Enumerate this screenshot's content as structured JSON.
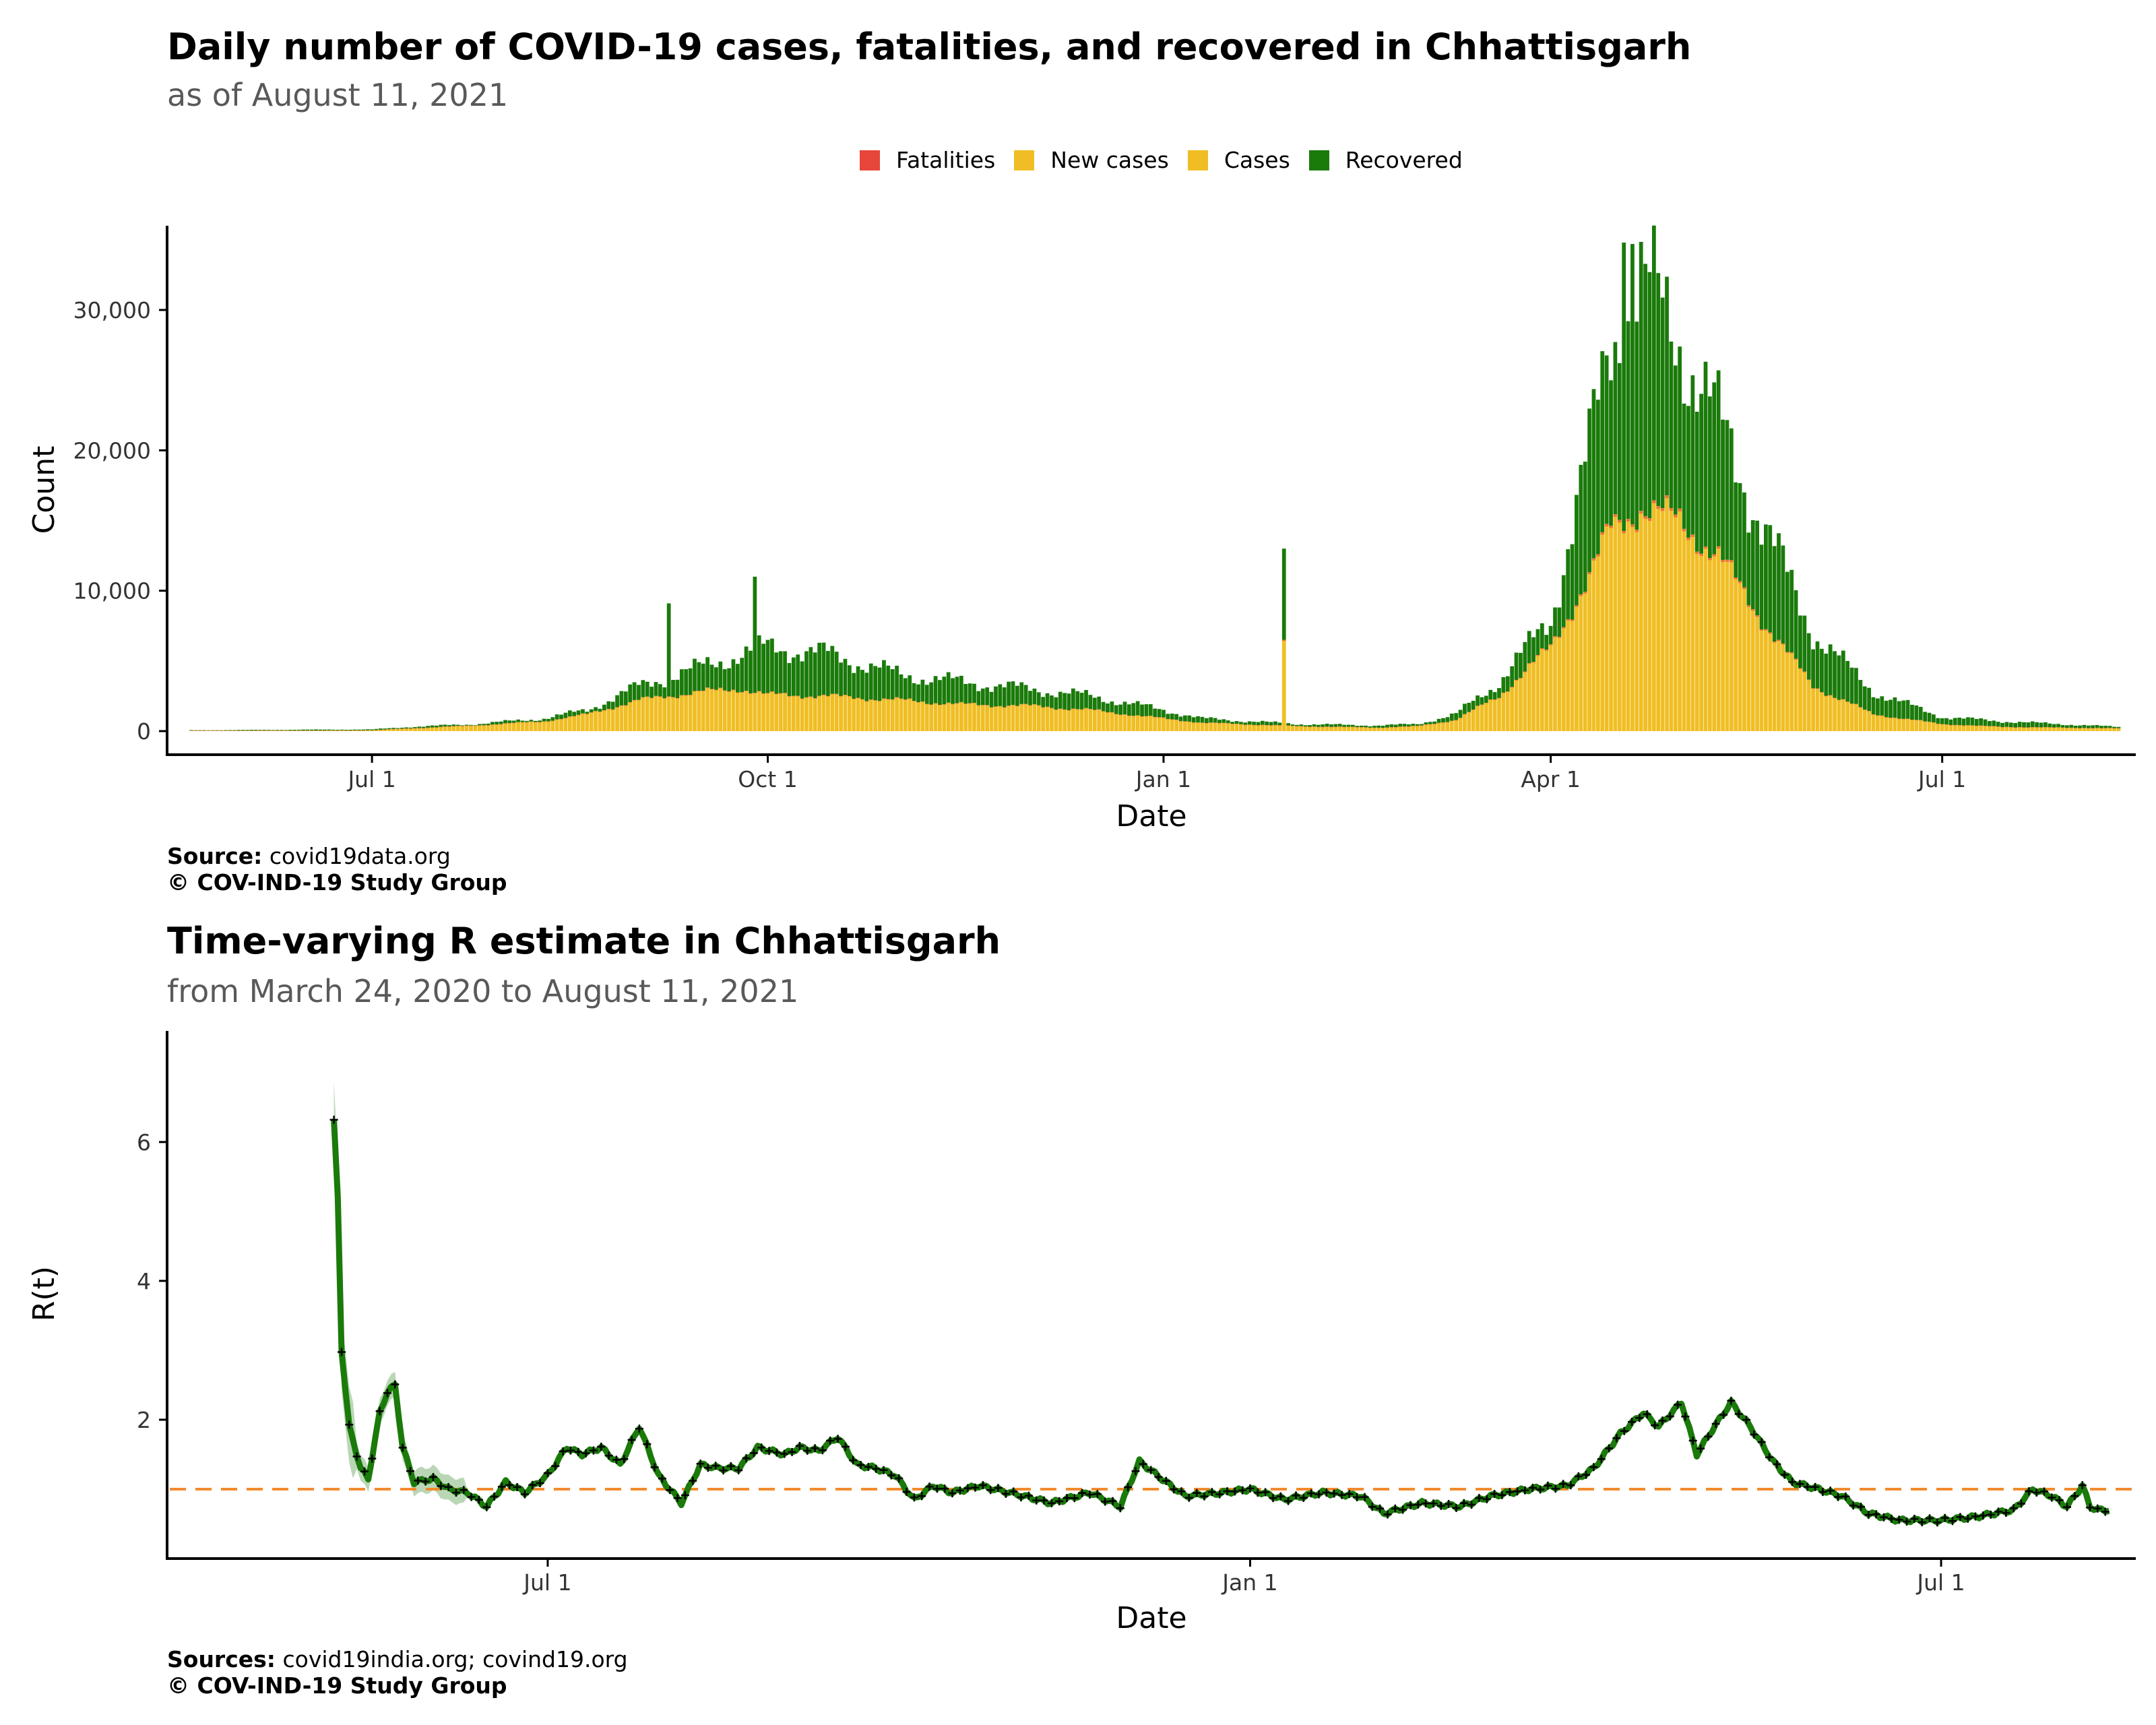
{
  "charts": [
    {
      "title": "Daily number of COVID-19 cases, fatalities, and recovered in Chhattisgarh",
      "subtitle": "as of August 11, 2021",
      "source_label": "Source:",
      "source_text": "covid19data.org",
      "copyright": "© COV-IND-19 Study Group"
    },
    {
      "title": "Time-varying R estimate in Chhattisgarh",
      "subtitle": "from March 24, 2020 to August 11, 2021",
      "source_label": "Sources:",
      "source_text": "covid19india.org; covind19.org",
      "copyright": "© COV-IND-19 Study Group"
    }
  ],
  "chart_data": [
    {
      "type": "bar",
      "stacked": true,
      "title": "Daily number of COVID-19 cases, fatalities, and recovered in Chhattisgarh",
      "subtitle": "as of August 11, 2021",
      "xlabel": "Date",
      "ylabel": "Count",
      "x_ticks": [
        "Jul 1",
        "Oct 1",
        "Jan 1",
        "Apr 1",
        "Jul 1"
      ],
      "y_ticks": [
        "0",
        "10,000",
        "20,000",
        "30,000"
      ],
      "ylim": [
        0,
        36000
      ],
      "grid": false,
      "legend_position": "top",
      "series": [
        {
          "name": "Fatalities",
          "color": "#e8463a"
        },
        {
          "name": "New cases",
          "color": "#f0be24"
        },
        {
          "name": "Cases",
          "color": "#f0be24"
        },
        {
          "name": "Recovered",
          "color": "#1a7a0a"
        }
      ],
      "x_range": [
        "2020-05-15",
        "2021-08-15"
      ],
      "cases_anchors": [
        [
          "2020-05-20",
          30
        ],
        [
          "2020-06-15",
          40
        ],
        [
          "2020-07-01",
          60
        ],
        [
          "2020-07-10",
          200
        ],
        [
          "2020-07-25",
          400
        ],
        [
          "2020-08-10",
          700
        ],
        [
          "2020-08-20",
          1200
        ],
        [
          "2020-09-01",
          2200
        ],
        [
          "2020-09-15",
          2800
        ],
        [
          "2020-09-25",
          3000
        ],
        [
          "2020-10-01",
          2600
        ],
        [
          "2020-10-15",
          2500
        ],
        [
          "2020-11-01",
          2200
        ],
        [
          "2020-11-15",
          1900
        ],
        [
          "2020-12-01",
          1800
        ],
        [
          "2020-12-15",
          1500
        ],
        [
          "2021-01-01",
          900
        ],
        [
          "2021-01-10",
          600
        ],
        [
          "2021-02-01",
          350
        ],
        [
          "2021-02-20",
          250
        ],
        [
          "2021-03-01",
          350
        ],
        [
          "2021-03-10",
          800
        ],
        [
          "2021-03-20",
          2500
        ],
        [
          "2021-04-01",
          6000
        ],
        [
          "2021-04-10",
          11000
        ],
        [
          "2021-04-15",
          14500
        ],
        [
          "2021-04-22",
          16000
        ],
        [
          "2021-05-01",
          15000
        ],
        [
          "2021-05-10",
          12500
        ],
        [
          "2021-05-20",
          8000
        ],
        [
          "2021-06-01",
          3200
        ],
        [
          "2021-06-15",
          1200
        ],
        [
          "2021-07-01",
          500
        ],
        [
          "2021-07-15",
          300
        ],
        [
          "2021-08-11",
          200
        ]
      ],
      "total_anchors": [
        [
          "2020-05-20",
          60
        ],
        [
          "2020-06-15",
          100
        ],
        [
          "2020-07-01",
          120
        ],
        [
          "2020-07-10",
          300
        ],
        [
          "2020-07-25",
          500
        ],
        [
          "2020-08-10",
          900
        ],
        [
          "2020-08-20",
          1500
        ],
        [
          "2020-09-01",
          3200
        ],
        [
          "2020-09-15",
          4500
        ],
        [
          "2020-09-25",
          5500
        ],
        [
          "2020-10-01",
          6000
        ],
        [
          "2020-10-15",
          5500
        ],
        [
          "2020-11-01",
          4000
        ],
        [
          "2020-11-15",
          3500
        ],
        [
          "2020-12-01",
          3000
        ],
        [
          "2020-12-15",
          2500
        ],
        [
          "2021-01-01",
          1500
        ],
        [
          "2021-01-10",
          900
        ],
        [
          "2021-02-01",
          500
        ],
        [
          "2021-02-20",
          400
        ],
        [
          "2021-03-01",
          500
        ],
        [
          "2021-03-10",
          1200
        ],
        [
          "2021-03-20",
          3500
        ],
        [
          "2021-04-01",
          8000
        ],
        [
          "2021-04-10",
          20000
        ],
        [
          "2021-04-15",
          28000
        ],
        [
          "2021-04-22",
          32000
        ],
        [
          "2021-05-01",
          28000
        ],
        [
          "2021-05-10",
          22000
        ],
        [
          "2021-05-20",
          15000
        ],
        [
          "2021-06-01",
          7000
        ],
        [
          "2021-06-15",
          2800
        ],
        [
          "2021-07-01",
          1000
        ],
        [
          "2021-07-15",
          700
        ],
        [
          "2021-08-11",
          300
        ]
      ],
      "spikes": [
        [
          "2020-09-08",
          9100
        ],
        [
          "2020-09-28",
          11000
        ],
        [
          "2021-01-29",
          13000
        ],
        [
          "2021-04-18",
          34800
        ],
        [
          "2021-04-20",
          34700
        ]
      ]
    },
    {
      "type": "line",
      "title": "Time-varying R estimate in Chhattisgarh",
      "subtitle": "from March 24, 2020 to August 11, 2021",
      "xlabel": "Date",
      "ylabel": "R(t)",
      "x_ticks": [
        "Jul 1",
        "Jan 1",
        "Jul 1"
      ],
      "y_ticks": [
        "2",
        "4",
        "6"
      ],
      "ylim": [
        0,
        7.6
      ],
      "x_range": [
        "2020-03-24",
        "2021-08-21"
      ],
      "reference_line": {
        "y": 1,
        "style": "dashed",
        "color": "#f28a2e"
      },
      "line_color": "#1a7a0a",
      "band_color": "#1a7a0a",
      "marker_color": "#000000",
      "grid": false,
      "series": [
        {
          "points": [
            [
              "2020-05-06",
              6.3
            ],
            [
              "2020-05-07",
              5.2
            ],
            [
              "2020-05-08",
              3.0
            ],
            [
              "2020-05-10",
              1.9
            ],
            [
              "2020-05-13",
              1.3
            ],
            [
              "2020-05-15",
              1.15
            ],
            [
              "2020-05-18",
              2.1
            ],
            [
              "2020-05-20",
              2.4
            ],
            [
              "2020-05-22",
              2.5
            ],
            [
              "2020-05-24",
              1.6
            ],
            [
              "2020-05-27",
              1.1
            ],
            [
              "2020-06-01",
              1.15
            ],
            [
              "2020-06-05",
              1.0
            ],
            [
              "2020-06-10",
              0.95
            ],
            [
              "2020-06-15",
              0.75
            ],
            [
              "2020-06-20",
              1.1
            ],
            [
              "2020-06-25",
              0.95
            ],
            [
              "2020-07-01",
              1.2
            ],
            [
              "2020-07-06",
              1.6
            ],
            [
              "2020-07-10",
              1.5
            ],
            [
              "2020-07-15",
              1.6
            ],
            [
              "2020-07-20",
              1.35
            ],
            [
              "2020-07-25",
              1.9
            ],
            [
              "2020-07-30",
              1.2
            ],
            [
              "2020-08-05",
              0.8
            ],
            [
              "2020-08-10",
              1.35
            ],
            [
              "2020-08-15",
              1.3
            ],
            [
              "2020-08-20",
              1.3
            ],
            [
              "2020-08-25",
              1.6
            ],
            [
              "2020-09-01",
              1.5
            ],
            [
              "2020-09-05",
              1.6
            ],
            [
              "2020-09-10",
              1.55
            ],
            [
              "2020-09-15",
              1.75
            ],
            [
              "2020-09-20",
              1.35
            ],
            [
              "2020-09-25",
              1.3
            ],
            [
              "2020-09-30",
              1.2
            ],
            [
              "2020-10-05",
              0.85
            ],
            [
              "2020-10-10",
              1.05
            ],
            [
              "2020-10-15",
              0.95
            ],
            [
              "2020-10-22",
              1.05
            ],
            [
              "2020-10-30",
              0.95
            ],
            [
              "2020-11-10",
              0.8
            ],
            [
              "2020-11-20",
              0.95
            ],
            [
              "2020-11-28",
              0.75
            ],
            [
              "2020-12-03",
              1.4
            ],
            [
              "2020-12-10",
              1.1
            ],
            [
              "2020-12-15",
              0.9
            ],
            [
              "2020-12-25",
              0.95
            ],
            [
              "2021-01-01",
              1.0
            ],
            [
              "2021-01-10",
              0.85
            ],
            [
              "2021-01-20",
              0.95
            ],
            [
              "2021-01-30",
              0.9
            ],
            [
              "2021-02-05",
              0.65
            ],
            [
              "2021-02-15",
              0.8
            ],
            [
              "2021-02-25",
              0.75
            ],
            [
              "2021-03-05",
              0.9
            ],
            [
              "2021-03-15",
              1.0
            ],
            [
              "2021-03-25",
              1.05
            ],
            [
              "2021-04-01",
              1.3
            ],
            [
              "2021-04-08",
              1.8
            ],
            [
              "2021-04-14",
              2.1
            ],
            [
              "2021-04-18",
              1.9
            ],
            [
              "2021-04-24",
              2.25
            ],
            [
              "2021-04-28",
              1.5
            ],
            [
              "2021-05-02",
              1.85
            ],
            [
              "2021-05-07",
              2.25
            ],
            [
              "2021-05-12",
              1.9
            ],
            [
              "2021-05-18",
              1.4
            ],
            [
              "2021-05-23",
              1.1
            ],
            [
              "2021-05-30",
              1.0
            ],
            [
              "2021-06-05",
              0.9
            ],
            [
              "2021-06-12",
              0.65
            ],
            [
              "2021-06-20",
              0.55
            ],
            [
              "2021-07-01",
              0.55
            ],
            [
              "2021-07-10",
              0.6
            ],
            [
              "2021-07-20",
              0.7
            ],
            [
              "2021-07-25",
              1.0
            ],
            [
              "2021-07-30",
              0.9
            ],
            [
              "2021-08-03",
              0.75
            ],
            [
              "2021-08-07",
              1.05
            ],
            [
              "2021-08-09",
              0.75
            ],
            [
              "2021-08-11",
              0.7
            ],
            [
              "2021-08-14",
              0.7
            ]
          ]
        }
      ]
    }
  ]
}
